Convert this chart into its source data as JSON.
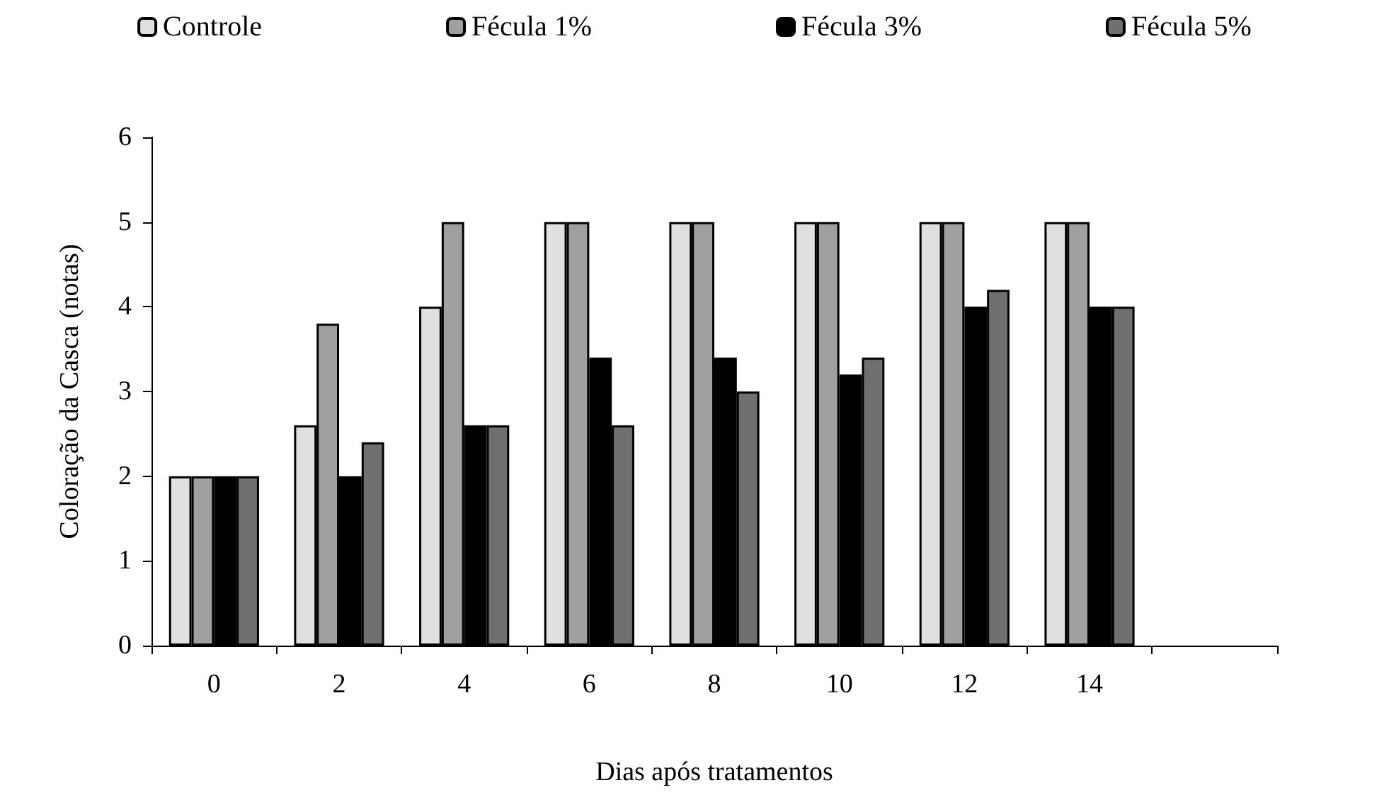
{
  "chart_data": {
    "type": "bar",
    "xlabel": "Dias após tratamentos",
    "ylabel": "Coloração da Casca (notas)",
    "categories": [
      "0",
      "2",
      "4",
      "6",
      "8",
      "10",
      "12",
      "14",
      null
    ],
    "series": [
      {
        "name": "Controle",
        "color": "#e0e0e0",
        "values": [
          2,
          2.6,
          4,
          5,
          5,
          5,
          5,
          5,
          null
        ]
      },
      {
        "name": "Fécula 1%",
        "color": "#a0a0a0",
        "values": [
          2,
          3.8,
          5,
          5,
          5,
          5,
          5,
          5,
          null
        ]
      },
      {
        "name": "Fécula 3%",
        "color": "#000000",
        "values": [
          2,
          2,
          2.6,
          3.4,
          3.4,
          3.2,
          4,
          4,
          null
        ]
      },
      {
        "name": "Fécula 5%",
        "color": "#707070",
        "values": [
          2,
          2.4,
          2.6,
          2.6,
          3,
          3.4,
          4.2,
          4,
          null
        ]
      }
    ],
    "ylim": [
      0,
      6
    ],
    "yticks": [
      0,
      1,
      2,
      3,
      4,
      5,
      6
    ],
    "grid": false,
    "legend": "top"
  }
}
